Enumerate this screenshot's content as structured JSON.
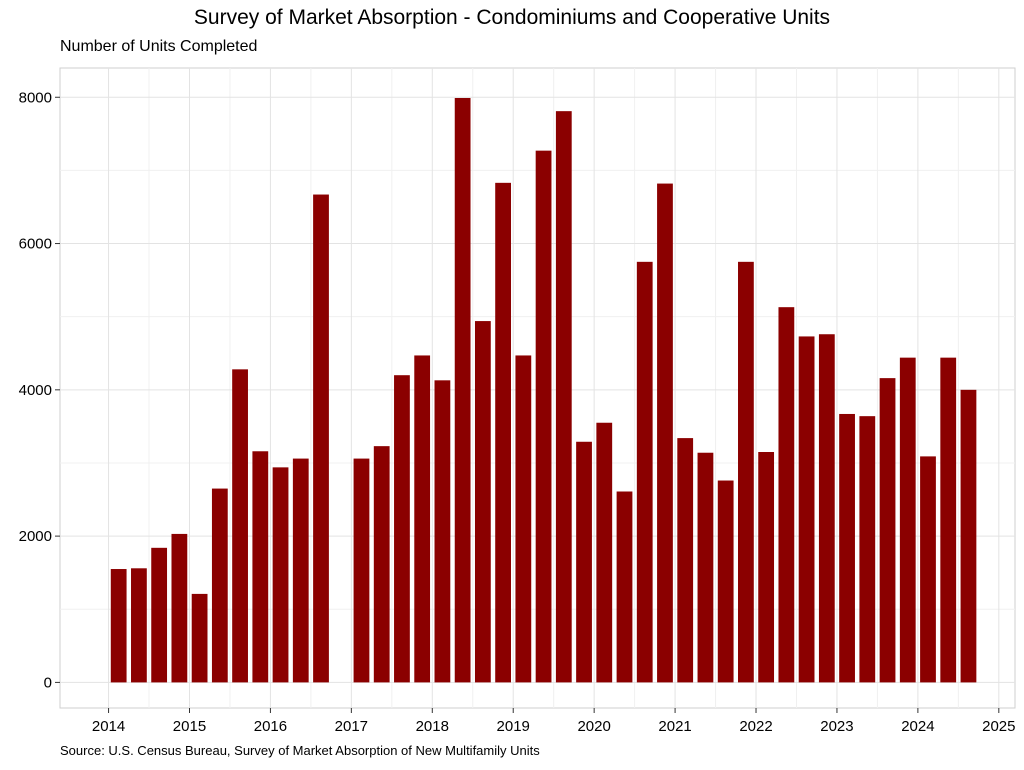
{
  "chart_data": {
    "type": "bar",
    "title": "Survey of Market Absorption - Condominiums and Cooperative Units",
    "subtitle": "Number of Units Completed",
    "source": "Source: U.S. Census Bureau, Survey of Market Absorption of New Multifamily Units",
    "xlabel": "",
    "ylabel": "",
    "x_ticks": [
      "2014",
      "2015",
      "2016",
      "2017",
      "2018",
      "2019",
      "2020",
      "2021",
      "2022",
      "2023",
      "2024",
      "2025"
    ],
    "y_ticks": [
      "0",
      "2000",
      "4000",
      "6000",
      "8000"
    ],
    "ylim": [
      -350,
      8400
    ],
    "xlim": [
      2013.4,
      2025.2
    ],
    "grid": true,
    "bar_color": "#8B0000",
    "series": [
      {
        "x": [
          "2014-Q1",
          "2014-Q2",
          "2014-Q3",
          "2014-Q4",
          "2015-Q1",
          "2015-Q2",
          "2015-Q3",
          "2015-Q4",
          "2016-Q1",
          "2016-Q2",
          "2016-Q3",
          "2017-Q1",
          "2017-Q2",
          "2017-Q3",
          "2017-Q4",
          "2018-Q1",
          "2018-Q2",
          "2018-Q3",
          "2018-Q4",
          "2019-Q1",
          "2019-Q2",
          "2019-Q3",
          "2019-Q4",
          "2020-Q1",
          "2020-Q2",
          "2020-Q3",
          "2020-Q4",
          "2021-Q1",
          "2021-Q2",
          "2021-Q3",
          "2021-Q4",
          "2022-Q1",
          "2022-Q2",
          "2022-Q3",
          "2022-Q4",
          "2023-Q1",
          "2023-Q2",
          "2023-Q3",
          "2023-Q4",
          "2024-Q1",
          "2024-Q2",
          "2024-Q3"
        ],
        "x_num": [
          2014.125,
          2014.375,
          2014.625,
          2014.875,
          2015.125,
          2015.375,
          2015.625,
          2015.875,
          2016.125,
          2016.375,
          2016.625,
          2017.125,
          2017.375,
          2017.625,
          2017.875,
          2018.125,
          2018.375,
          2018.625,
          2018.875,
          2019.125,
          2019.375,
          2019.625,
          2019.875,
          2020.125,
          2020.375,
          2020.625,
          2020.875,
          2021.125,
          2021.375,
          2021.625,
          2021.875,
          2022.125,
          2022.375,
          2022.625,
          2022.875,
          2023.125,
          2023.375,
          2023.625,
          2023.875,
          2024.125,
          2024.375,
          2024.625
        ],
        "values": [
          1550,
          1560,
          1840,
          2030,
          1210,
          2650,
          4280,
          3160,
          2940,
          3060,
          6670,
          3060,
          3230,
          4200,
          4470,
          4130,
          7990,
          4940,
          6830,
          4470,
          7270,
          7810,
          3290,
          3550,
          2610,
          5750,
          6820,
          3340,
          3140,
          2760,
          5750,
          3150,
          5130,
          4730,
          4760,
          3670,
          3640,
          4160,
          4440,
          3090,
          4440,
          4000
        ]
      }
    ]
  }
}
